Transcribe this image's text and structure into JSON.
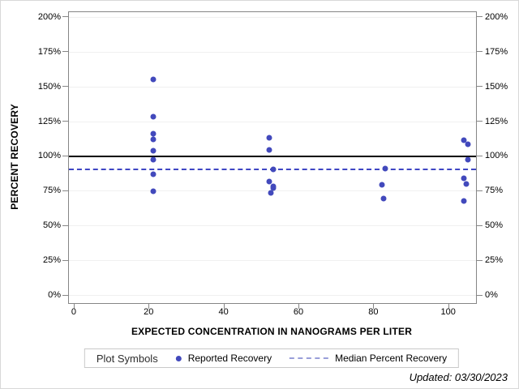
{
  "figure": {
    "footnote": "Updated: 03/30/2023"
  },
  "chart_data": {
    "type": "scatter",
    "title": "",
    "xlabel": "EXPECTED CONCENTRATION IN NANOGRAMS PER LITER",
    "ylabel": "PERCENT RECOVERY",
    "xlim": [
      -1.5,
      107.2
    ],
    "ylim": [
      -5.5,
      203.7
    ],
    "x_ticks": [
      0,
      20,
      40,
      60,
      80,
      100
    ],
    "x_tick_labels": [
      "0",
      "20",
      "40",
      "60",
      "80",
      "100"
    ],
    "y_ticks": [
      0,
      25,
      50,
      75,
      100,
      125,
      150,
      175,
      200
    ],
    "y_tick_labels": [
      "0%",
      "25%",
      "50%",
      "75%",
      "100%",
      "125%",
      "150%",
      "175%",
      "200%"
    ],
    "grid": "horizontal",
    "legend_position": "bottom",
    "legend_title": "Plot Symbols",
    "series": [
      {
        "name": "Reported Recovery",
        "type": "scatter",
        "color": "#4249bc",
        "points": [
          [
            21,
            155.4
          ],
          [
            21,
            128.6
          ],
          [
            21,
            116.0
          ],
          [
            21,
            112.0
          ],
          [
            21,
            103.8
          ],
          [
            21,
            97.5
          ],
          [
            21,
            87.2
          ],
          [
            21,
            75.2
          ],
          [
            52,
            113.5
          ],
          [
            52,
            104.7
          ],
          [
            53,
            90.4
          ],
          [
            52,
            82.0
          ],
          [
            53,
            78.5
          ],
          [
            53,
            77.0
          ],
          [
            52.5,
            73.6
          ],
          [
            83,
            91.3
          ],
          [
            82,
            79.6
          ],
          [
            82.5,
            69.4
          ],
          [
            104,
            111.7
          ],
          [
            105,
            108.6
          ],
          [
            105,
            97.5
          ],
          [
            104,
            84.5
          ],
          [
            104.5,
            80.0
          ],
          [
            104,
            67.8
          ]
        ]
      },
      {
        "name": "Median Percent Recovery",
        "type": "reference-line",
        "style": "dashed",
        "color": "#3f46c4",
        "value": 90.4
      }
    ],
    "reference_lines": [
      {
        "name": "100 percent line",
        "value": 100,
        "color": "#000000",
        "style": "solid"
      }
    ]
  }
}
